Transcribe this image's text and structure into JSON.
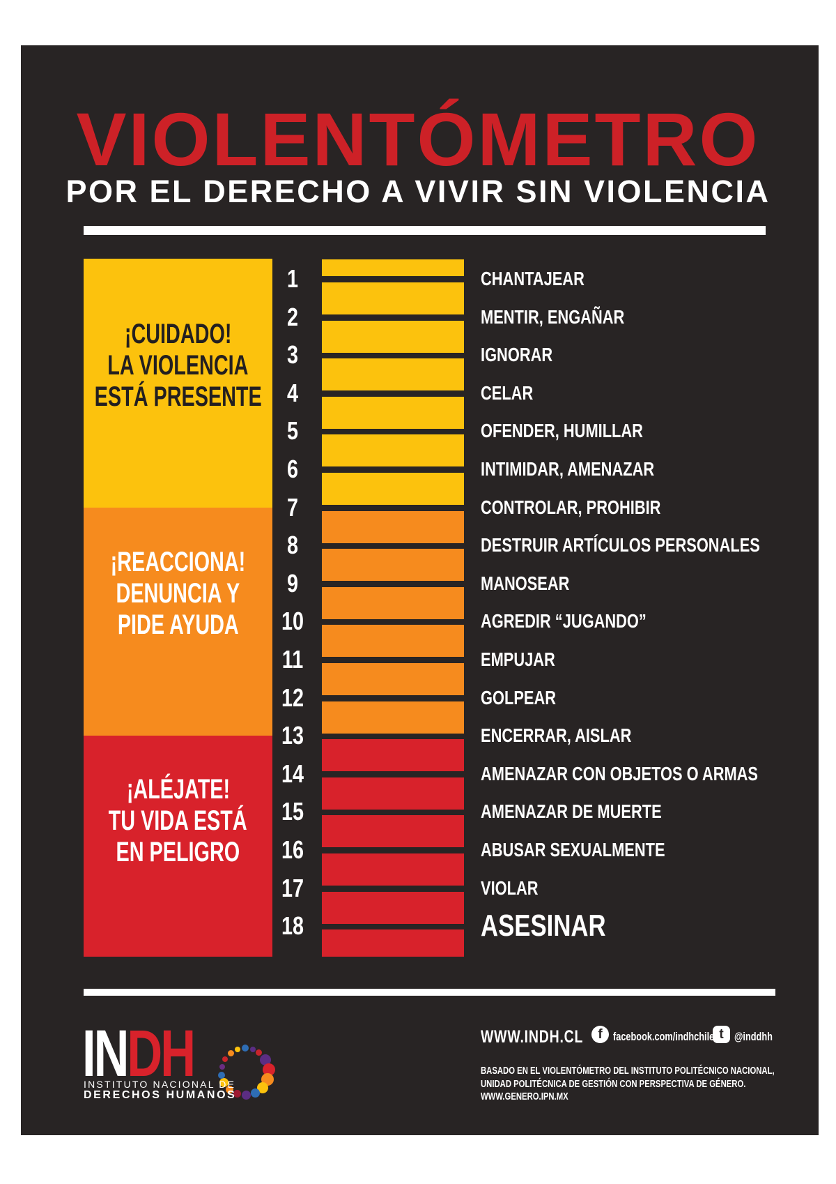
{
  "poster": {
    "title": "VIOLENTÓMETRO",
    "subtitle": "POR EL DERECHO A VIVIR SIN VIOLENCIA",
    "colors": {
      "page_background": "#ffffff",
      "panel_background": "#282424",
      "title_red": "#CD2127",
      "text_white": "#ffffff"
    }
  },
  "zones": [
    {
      "name": "cuidado",
      "color": "#FCC20D",
      "text_color": "#231F20",
      "lines": [
        "¡CUIDADO!",
        "LA VIOLENCIA",
        "ESTÁ PRESENTE"
      ]
    },
    {
      "name": "reacciona",
      "color": "#F68B1E",
      "text_color": "#ffffff",
      "lines": [
        "¡REACCIONA!",
        "DENUNCIA Y",
        "PIDE AYUDA"
      ]
    },
    {
      "name": "alejate",
      "color": "#D8222B",
      "text_color": "#ffffff",
      "lines": [
        "¡ALÉJATE!",
        "TU VIDA ESTÁ",
        "EN PELIGRO"
      ]
    }
  ],
  "meter": {
    "items": [
      {
        "n": "1",
        "label": "CHANTAJEAR",
        "zone": 0
      },
      {
        "n": "2",
        "label": "MENTIR, ENGAÑAR",
        "zone": 0
      },
      {
        "n": "3",
        "label": "IGNORAR",
        "zone": 0
      },
      {
        "n": "4",
        "label": "CELAR",
        "zone": 0
      },
      {
        "n": "5",
        "label": "OFENDER, HUMILLAR",
        "zone": 0
      },
      {
        "n": "6",
        "label": "INTIMIDAR, AMENAZAR",
        "zone": 0
      },
      {
        "n": "7",
        "label": "CONTROLAR, PROHIBIR",
        "zone": 0
      },
      {
        "n": "8",
        "label": "DESTRUIR ARTÍCULOS PERSONALES",
        "zone": 1
      },
      {
        "n": "9",
        "label": "MANOSEAR",
        "zone": 1
      },
      {
        "n": "10",
        "label": "AGREDIR “JUGANDO”",
        "zone": 1
      },
      {
        "n": "11",
        "label": "EMPUJAR",
        "zone": 1
      },
      {
        "n": "12",
        "label": "GOLPEAR",
        "zone": 1
      },
      {
        "n": "13",
        "label": "ENCERRAR, AISLAR",
        "zone": 1
      },
      {
        "n": "14",
        "label": "AMENAZAR CON OBJETOS O ARMAS",
        "zone": 2
      },
      {
        "n": "15",
        "label": "AMENAZAR DE MUERTE",
        "zone": 2
      },
      {
        "n": "16",
        "label": "ABUSAR SEXUALMENTE",
        "zone": 2
      },
      {
        "n": "17",
        "label": "VIOLAR",
        "zone": 2
      },
      {
        "n": "18",
        "label": "ASESINAR",
        "zone": 2,
        "big": true
      }
    ]
  },
  "footer": {
    "logo": {
      "in": "IN",
      "dh": "DH",
      "line1": "INSTITUTO NACIONAL DE",
      "line2": "DERECHOS HUMANOS"
    },
    "website": "WWW.INDH.CL",
    "facebook_icon": "f",
    "facebook": "facebook.com/indhchile",
    "twitter_icon": "t",
    "twitter": "@inddhh",
    "credit_lines": [
      "BASADO EN EL VIOLENTÓMETRO DEL INSTITUTO POLITÉCNICO NACIONAL,",
      "UNIDAD POLITÉCNICA DE GESTIÓN CON PERSPECTIVA DE GÉNERO.",
      "WWW.GENERO.IPN.MX"
    ]
  },
  "logo_dots": [
    {
      "a": 90,
      "s": 10,
      "c": "#2E6DB4"
    },
    {
      "a": 72,
      "s": 8,
      "c": "#5B2D83"
    },
    {
      "a": 55,
      "s": 9,
      "c": "#C8242B"
    },
    {
      "a": 30,
      "s": 16,
      "c": "#5B2D83"
    },
    {
      "a": 5,
      "s": 18,
      "c": "#D8222B"
    },
    {
      "a": -18,
      "s": 18,
      "c": "#F68B1E"
    },
    {
      "a": -42,
      "s": 16,
      "c": "#FCC20D"
    },
    {
      "a": -65,
      "s": 13,
      "c": "#2E6DB4"
    },
    {
      "a": -88,
      "s": 13,
      "c": "#5B2D83"
    },
    {
      "a": -110,
      "s": 11,
      "c": "#9E1B32"
    },
    {
      "a": -132,
      "s": 11,
      "c": "#F68B1E"
    },
    {
      "a": -152,
      "s": 13,
      "c": "#FCC20D"
    },
    {
      "a": -172,
      "s": 10,
      "c": "#2E6DB4"
    },
    {
      "a": 168,
      "s": 8,
      "c": "#6A2D82"
    },
    {
      "a": 148,
      "s": 8,
      "c": "#C8242B"
    },
    {
      "a": 128,
      "s": 9,
      "c": "#F68B1E"
    },
    {
      "a": 108,
      "s": 8,
      "c": "#FCC20D"
    }
  ]
}
